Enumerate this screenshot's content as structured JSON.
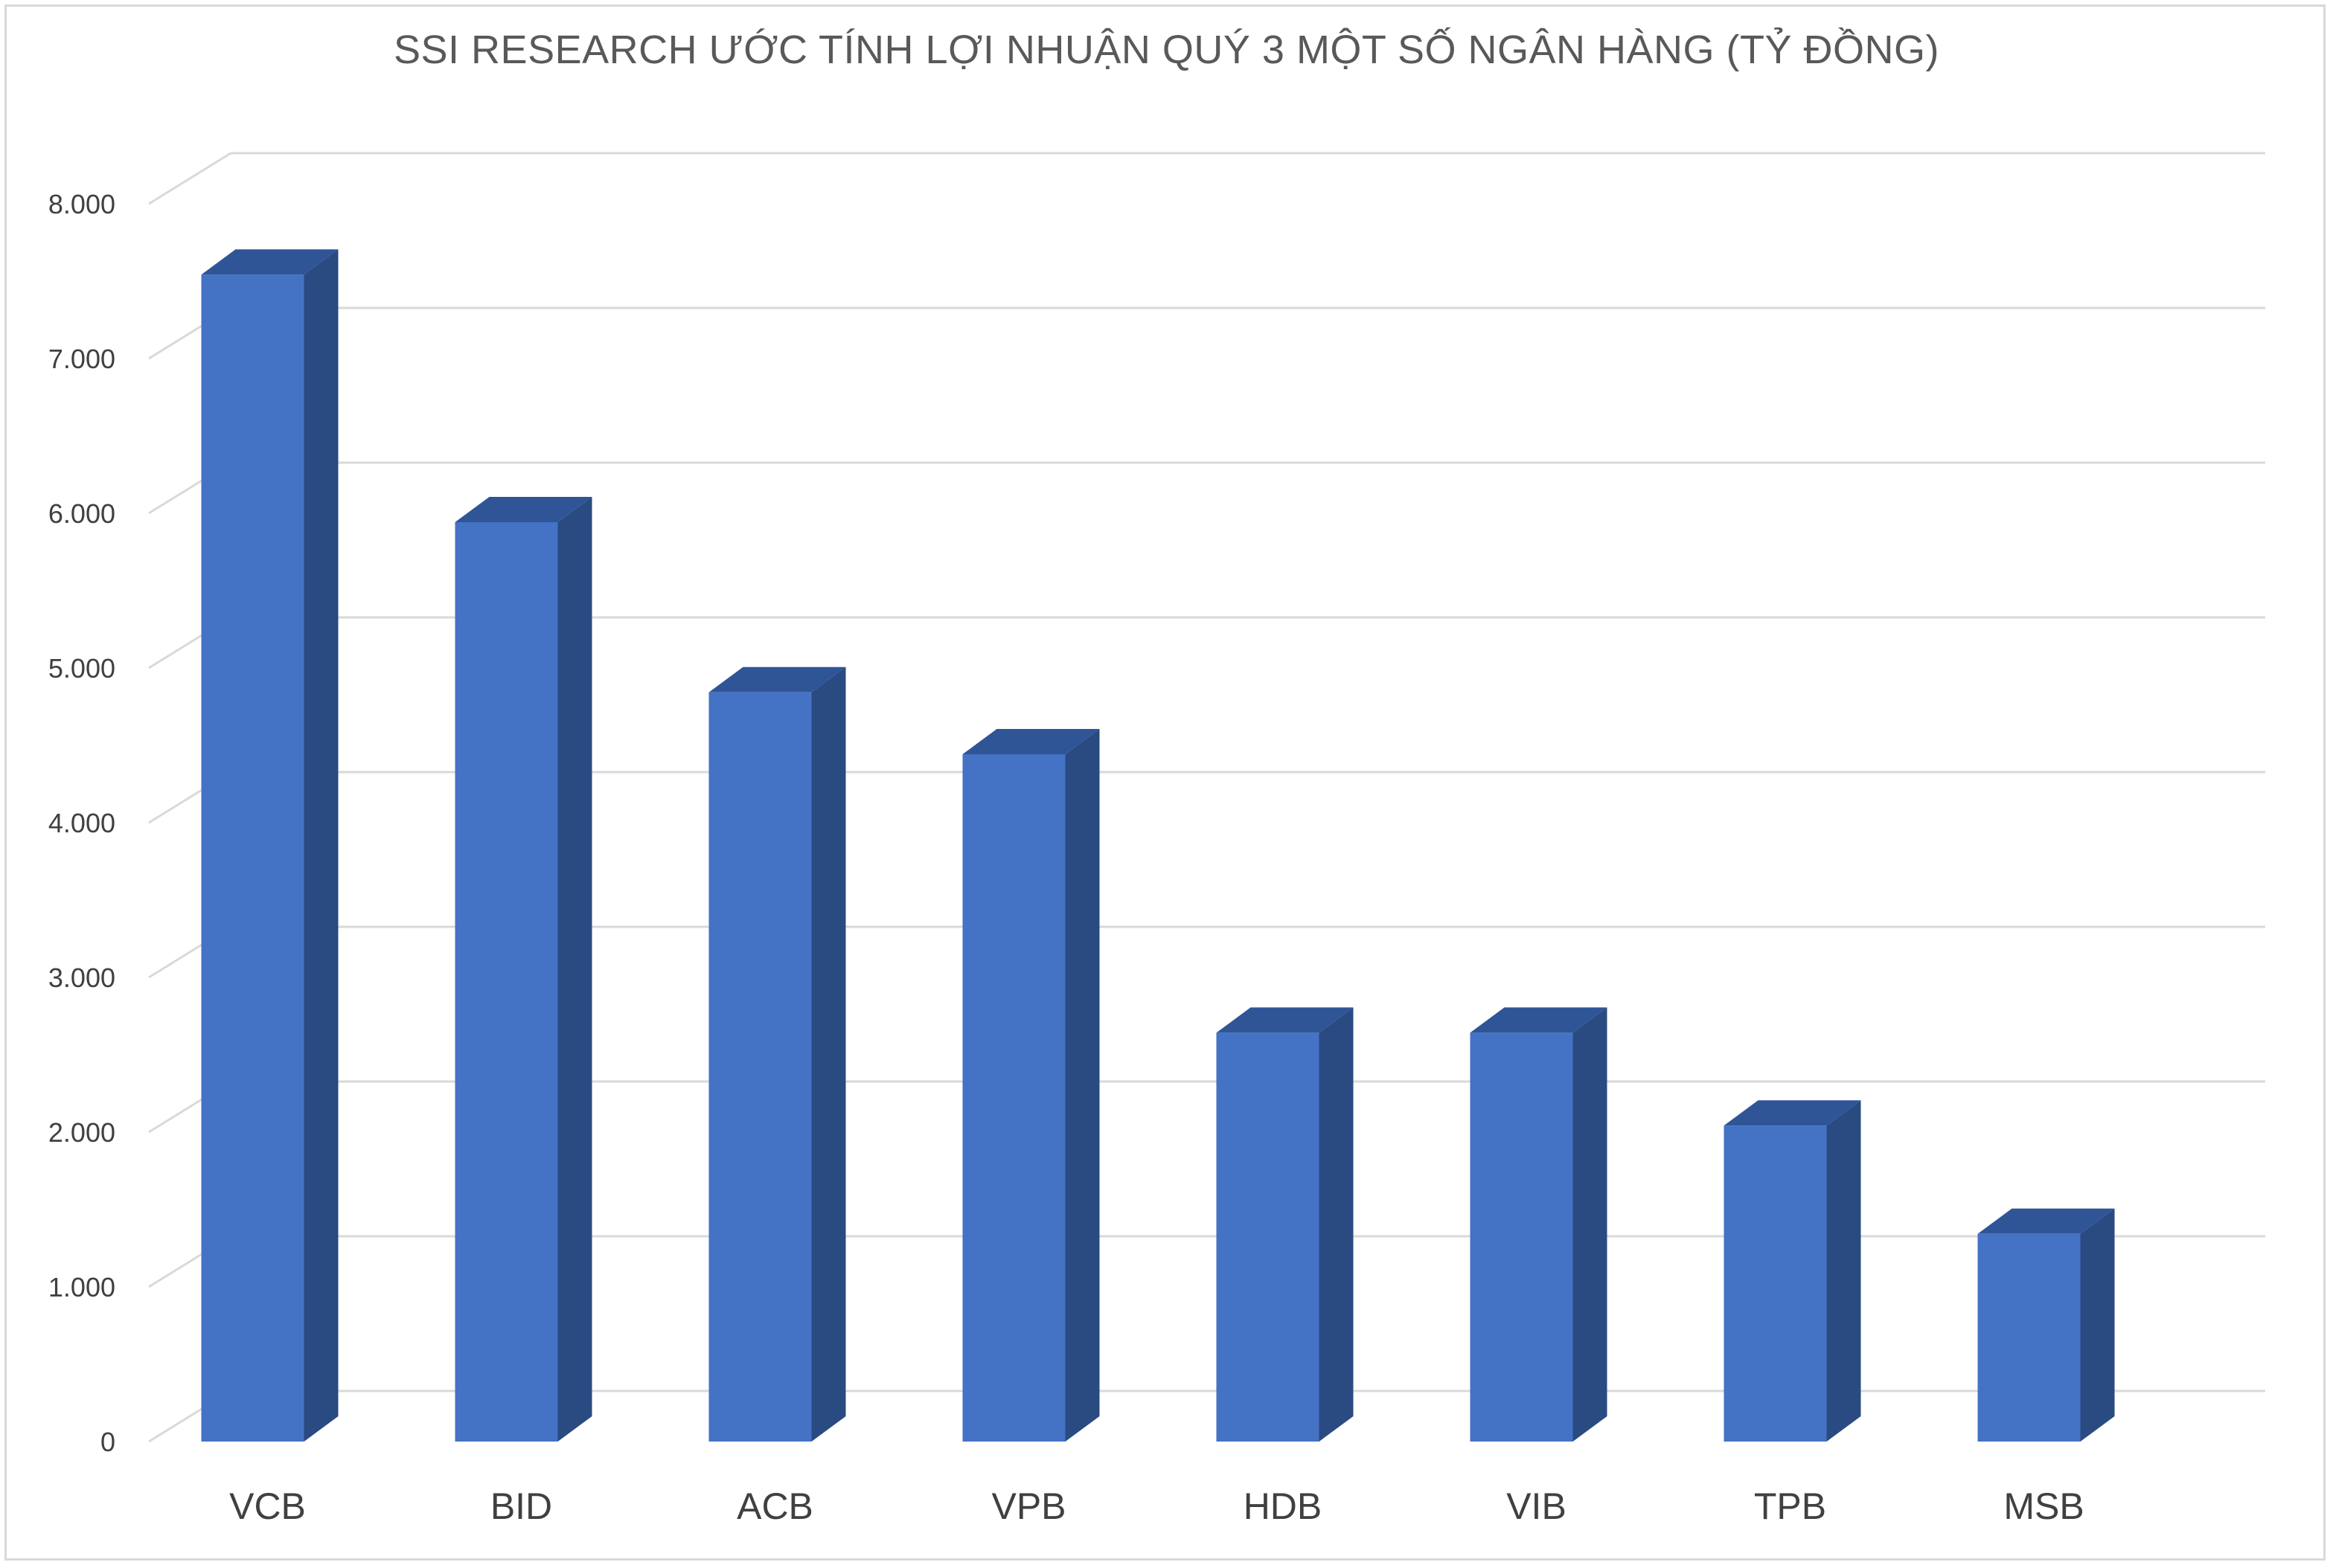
{
  "chart_data": {
    "type": "bar",
    "title": "SSI RESEARCH ƯỚC TÍNH LỢI NHUẬN QUÝ 3 MỘT SỐ NGÂN HÀNG (TỶ ĐỒNG)",
    "xlabel": "",
    "ylabel": "",
    "categories": [
      "VCB",
      "BID",
      "ACB",
      "VPB",
      "HDB",
      "VIB",
      "TPB",
      "MSB"
    ],
    "series": [
      {
        "values": [
          7600,
          6000,
          4900,
          4500,
          2700,
          2700,
          2100,
          1400
        ]
      }
    ],
    "ylim": [
      0,
      8000
    ],
    "yticks": [
      0,
      1000,
      2000,
      3000,
      4000,
      5000,
      6000,
      7000,
      8000
    ],
    "ytick_labels": [
      "0",
      "1.000",
      "2.000",
      "3.000",
      "4.000",
      "5.000",
      "6.000",
      "7.000",
      "8.000"
    ],
    "grid": true,
    "legend": "none",
    "style": "3d-column",
    "colors": {
      "bar_front": "#4472C4",
      "bar_side": "#2A4A82",
      "bar_top": "#2F5597",
      "grid": "#D9D9D9"
    }
  }
}
